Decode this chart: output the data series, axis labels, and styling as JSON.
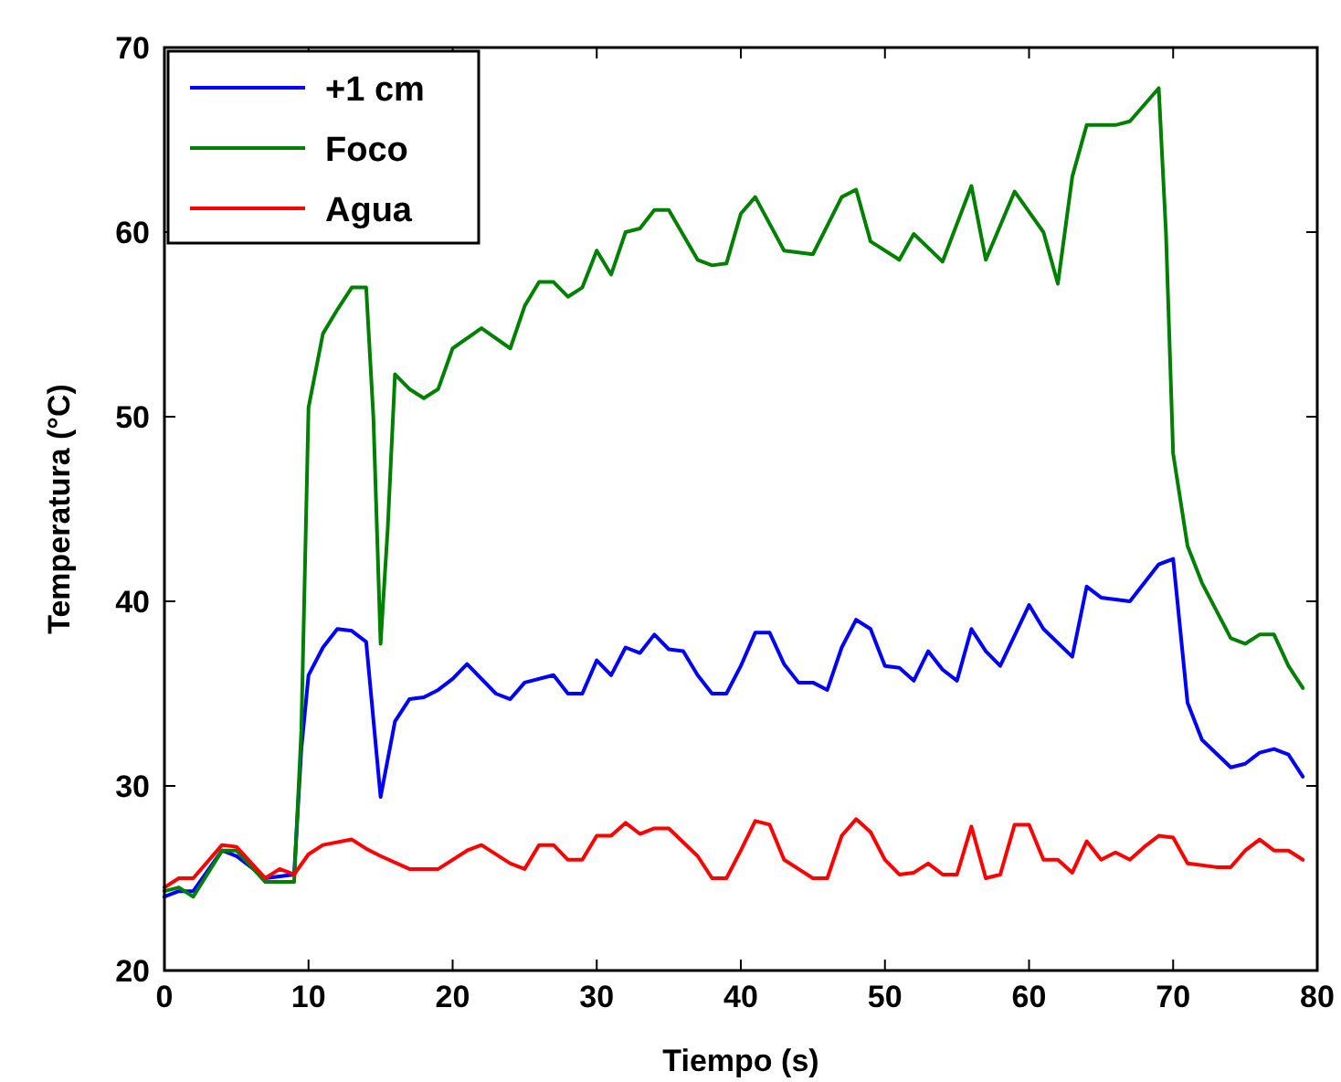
{
  "chart_data": {
    "type": "line",
    "xlabel": "Tiempo (s)",
    "ylabel": "Temperatura (°C)",
    "xlim": [
      0,
      80
    ],
    "ylim": [
      20,
      70
    ],
    "xticks": [
      0,
      10,
      20,
      30,
      40,
      50,
      60,
      70,
      80
    ],
    "yticks": [
      20,
      30,
      40,
      50,
      60,
      70
    ],
    "grid": false,
    "legend": "top left",
    "marker": "none",
    "line_style": "solid",
    "series": [
      {
        "name": "+1 cm",
        "color": "#0000ff",
        "x": [
          0,
          1,
          2,
          4,
          5,
          7,
          9,
          9.5,
          10,
          11,
          12,
          13,
          14,
          15,
          16,
          17,
          18,
          19,
          20,
          21,
          23,
          24,
          25,
          27,
          28,
          29,
          30,
          31,
          32,
          33,
          34,
          35,
          36,
          37,
          38,
          39,
          40,
          41,
          42,
          43,
          44,
          45,
          46,
          47,
          48,
          49,
          50,
          51,
          52,
          53,
          54,
          55,
          56,
          57,
          58,
          60,
          61,
          63,
          64,
          65,
          67,
          68,
          69,
          70,
          71,
          72,
          74,
          75,
          76,
          77,
          78,
          79
        ],
        "values": [
          24,
          24.3,
          24.3,
          26.5,
          26.2,
          25,
          25.2,
          32,
          36,
          37.5,
          38.5,
          38.4,
          37.8,
          29.4,
          33.5,
          34.7,
          34.8,
          35.2,
          35.8,
          36.6,
          35,
          34.7,
          35.6,
          36,
          35,
          35,
          36.8,
          36,
          37.5,
          37.2,
          38.2,
          37.4,
          37.3,
          36,
          35,
          35,
          36.5,
          38.3,
          38.3,
          36.6,
          35.6,
          35.6,
          35.2,
          37.5,
          39,
          38.5,
          36.5,
          36.4,
          35.7,
          37.3,
          36.3,
          35.7,
          38.5,
          37.3,
          36.5,
          39.8,
          38.5,
          37,
          40.8,
          40.2,
          40,
          41,
          42,
          42.3,
          34.5,
          32.5,
          31,
          31.2,
          31.8,
          32,
          31.7,
          30.5
        ]
      },
      {
        "name": "Foco",
        "color": "#008000",
        "x": [
          0,
          1,
          2,
          4,
          5,
          7,
          9,
          9.5,
          10,
          11,
          12,
          13,
          14,
          14.5,
          15,
          15.5,
          16,
          17,
          18,
          19,
          20,
          22,
          24,
          25,
          26,
          27,
          28,
          29,
          30,
          31,
          32,
          33,
          34,
          35,
          37,
          38,
          39,
          40,
          41,
          43,
          45,
          47,
          48,
          49,
          51,
          52,
          54,
          56,
          57,
          59,
          61,
          62,
          63,
          64,
          66,
          67,
          69,
          69.5,
          70,
          71,
          72,
          74,
          75,
          76,
          77,
          78,
          79
        ],
        "values": [
          24.3,
          24.5,
          24,
          26.5,
          26.5,
          24.8,
          24.8,
          33,
          50.5,
          54.5,
          55.8,
          57,
          57,
          50,
          37.7,
          44,
          52.3,
          51.5,
          51,
          51.5,
          53.7,
          54.8,
          53.7,
          56,
          57.3,
          57.3,
          56.5,
          57,
          59,
          57.7,
          60,
          60.2,
          61.2,
          61.2,
          58.5,
          58.2,
          58.3,
          61,
          61.9,
          59,
          58.8,
          61.9,
          62.3,
          59.5,
          58.5,
          59.9,
          58.4,
          62.5,
          58.5,
          62.2,
          60,
          57.2,
          63,
          65.8,
          65.8,
          66,
          67.8,
          60,
          48,
          43,
          41,
          38,
          37.7,
          38.2,
          38.2,
          36.5,
          35.3
        ]
      },
      {
        "name": "Agua",
        "color": "#ff0000",
        "x": [
          0,
          1,
          2,
          4,
          5,
          7,
          8,
          9,
          10,
          11,
          13,
          14,
          15,
          17,
          19,
          21,
          22,
          24,
          25,
          26,
          27,
          28,
          29,
          30,
          31,
          32,
          33,
          34,
          35,
          37,
          38,
          39,
          40,
          41,
          42,
          43,
          44,
          45,
          46,
          47,
          48,
          49,
          50,
          51,
          52,
          53,
          54,
          55,
          56,
          57,
          58,
          59,
          60,
          61,
          62,
          63,
          64,
          65,
          66,
          67,
          68,
          69,
          70,
          71,
          73,
          74,
          75,
          76,
          77,
          78,
          79
        ],
        "values": [
          24.5,
          25,
          25,
          26.8,
          26.7,
          25,
          25.5,
          25.2,
          26.3,
          26.8,
          27.1,
          26.6,
          26.2,
          25.5,
          25.5,
          26.5,
          26.8,
          25.8,
          25.5,
          26.8,
          26.8,
          26,
          26,
          27.3,
          27.3,
          28,
          27.4,
          27.7,
          27.7,
          26.2,
          25,
          25,
          26.5,
          28.1,
          27.9,
          26,
          25.5,
          25,
          25,
          27.3,
          28.2,
          27.5,
          26,
          25.2,
          25.3,
          25.8,
          25.2,
          25.2,
          27.8,
          25,
          25.2,
          27.9,
          27.9,
          26,
          26,
          25.3,
          27,
          26,
          26.4,
          26,
          26.7,
          27.3,
          27.2,
          25.8,
          25.6,
          25.6,
          26.5,
          27.1,
          26.5,
          26.5,
          26
        ]
      }
    ]
  }
}
